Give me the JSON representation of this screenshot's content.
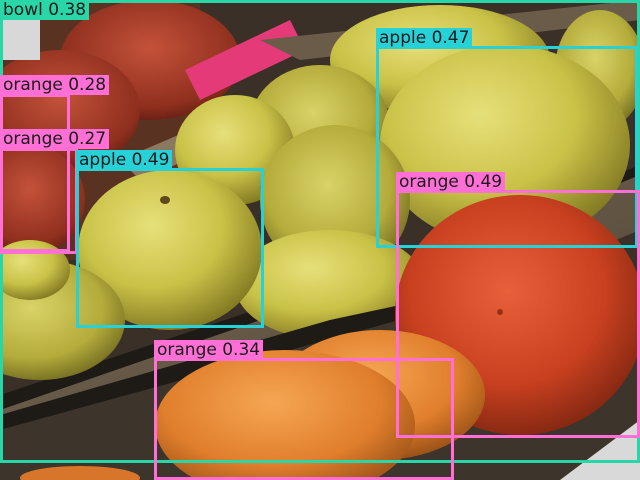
{
  "image": {
    "description_icon": "photo-of-fruit-crate",
    "colors": {
      "bowl": "#29d6a8",
      "apple": "#27d1d8",
      "orange": "#ff6fd6"
    }
  },
  "detections": [
    {
      "label": "bowl",
      "score": "0.38",
      "text": "bowl 0.38",
      "color": "#29d6a8"
    },
    {
      "label": "apple",
      "score": "0.47",
      "text": "apple 0.47",
      "color": "#27d1d8"
    },
    {
      "label": "orange",
      "score": "0.28",
      "text": "orange 0.28",
      "color": "#ff6fd6"
    },
    {
      "label": "orange",
      "score": "0.27",
      "text": "orange 0.27",
      "color": "#ff6fd6"
    },
    {
      "label": "apple",
      "score": "0.49",
      "text": "apple 0.49",
      "color": "#27d1d8"
    },
    {
      "label": "orange",
      "score": "0.49",
      "text": "orange 0.49",
      "color": "#ff6fd6"
    },
    {
      "label": "orange",
      "score": "0.34",
      "text": "orange 0.34",
      "color": "#ff6fd6"
    }
  ]
}
